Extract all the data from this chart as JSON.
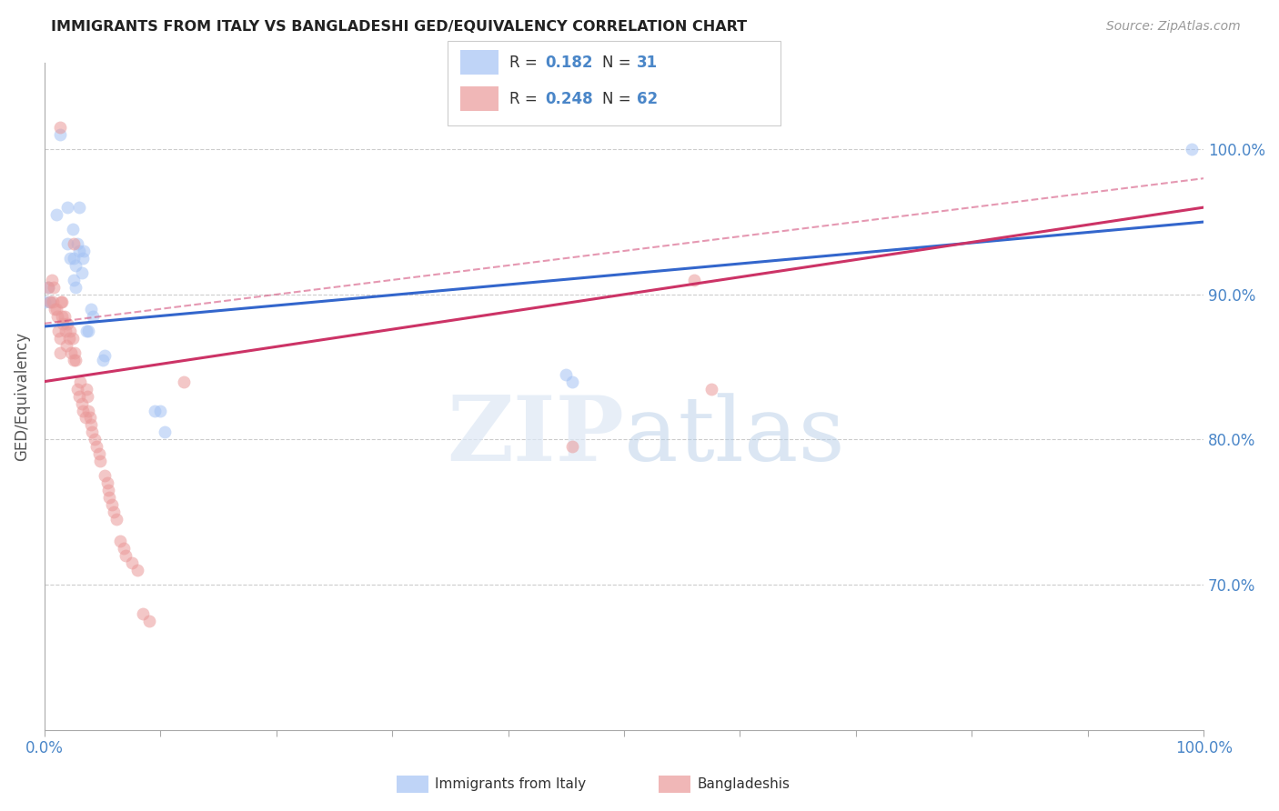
{
  "title": "IMMIGRANTS FROM ITALY VS BANGLADESHI GED/EQUIVALENCY CORRELATION CHART",
  "source": "Source: ZipAtlas.com",
  "ylabel": "GED/Equivalency",
  "legend1_r": "0.182",
  "legend1_n": "31",
  "legend2_r": "0.248",
  "legend2_n": "62",
  "blue_color": "#a4c2f4",
  "pink_color": "#ea9999",
  "line_blue": "#3366cc",
  "line_pink": "#cc3366",
  "axis_label_color": "#4a86c8",
  "ytick_color": "#4a86c8",
  "blue_scatter": [
    [
      0.0,
      0.895
    ],
    [
      0.01,
      0.955
    ],
    [
      0.013,
      1.01
    ],
    [
      0.02,
      0.96
    ],
    [
      0.02,
      0.935
    ],
    [
      0.022,
      0.925
    ],
    [
      0.024,
      0.945
    ],
    [
      0.025,
      0.925
    ],
    [
      0.025,
      0.91
    ],
    [
      0.027,
      0.92
    ],
    [
      0.027,
      0.905
    ],
    [
      0.028,
      0.935
    ],
    [
      0.03,
      0.96
    ],
    [
      0.03,
      0.93
    ],
    [
      0.032,
      0.915
    ],
    [
      0.033,
      0.925
    ],
    [
      0.034,
      0.93
    ],
    [
      0.036,
      0.875
    ],
    [
      0.038,
      0.875
    ],
    [
      0.04,
      0.89
    ],
    [
      0.042,
      0.885
    ],
    [
      0.05,
      0.855
    ],
    [
      0.052,
      0.858
    ],
    [
      0.095,
      0.82
    ],
    [
      0.1,
      0.82
    ],
    [
      0.104,
      0.805
    ],
    [
      0.45,
      0.845
    ],
    [
      0.455,
      0.84
    ],
    [
      0.99,
      1.0
    ],
    [
      0.003,
      0.905
    ],
    [
      0.005,
      0.895
    ]
  ],
  "pink_scatter": [
    [
      0.003,
      0.905
    ],
    [
      0.005,
      0.895
    ],
    [
      0.006,
      0.91
    ],
    [
      0.007,
      0.895
    ],
    [
      0.008,
      0.905
    ],
    [
      0.009,
      0.89
    ],
    [
      0.01,
      0.89
    ],
    [
      0.011,
      0.885
    ],
    [
      0.012,
      0.875
    ],
    [
      0.013,
      0.87
    ],
    [
      0.013,
      0.86
    ],
    [
      0.014,
      0.895
    ],
    [
      0.015,
      0.885
    ],
    [
      0.015,
      0.895
    ],
    [
      0.016,
      0.88
    ],
    [
      0.017,
      0.885
    ],
    [
      0.018,
      0.875
    ],
    [
      0.019,
      0.865
    ],
    [
      0.02,
      0.88
    ],
    [
      0.021,
      0.87
    ],
    [
      0.022,
      0.875
    ],
    [
      0.023,
      0.86
    ],
    [
      0.024,
      0.87
    ],
    [
      0.025,
      0.855
    ],
    [
      0.026,
      0.86
    ],
    [
      0.027,
      0.855
    ],
    [
      0.028,
      0.835
    ],
    [
      0.03,
      0.83
    ],
    [
      0.031,
      0.84
    ],
    [
      0.032,
      0.825
    ],
    [
      0.033,
      0.82
    ],
    [
      0.035,
      0.815
    ],
    [
      0.036,
      0.835
    ],
    [
      0.037,
      0.83
    ],
    [
      0.038,
      0.82
    ],
    [
      0.039,
      0.815
    ],
    [
      0.04,
      0.81
    ],
    [
      0.041,
      0.805
    ],
    [
      0.043,
      0.8
    ],
    [
      0.045,
      0.795
    ],
    [
      0.047,
      0.79
    ],
    [
      0.048,
      0.785
    ],
    [
      0.052,
      0.775
    ],
    [
      0.054,
      0.77
    ],
    [
      0.055,
      0.765
    ],
    [
      0.056,
      0.76
    ],
    [
      0.058,
      0.755
    ],
    [
      0.06,
      0.75
    ],
    [
      0.062,
      0.745
    ],
    [
      0.065,
      0.73
    ],
    [
      0.068,
      0.725
    ],
    [
      0.07,
      0.72
    ],
    [
      0.075,
      0.715
    ],
    [
      0.08,
      0.71
    ],
    [
      0.085,
      0.68
    ],
    [
      0.09,
      0.675
    ],
    [
      0.013,
      1.015
    ],
    [
      0.025,
      0.935
    ],
    [
      0.12,
      0.84
    ],
    [
      0.455,
      0.795
    ],
    [
      0.56,
      0.91
    ],
    [
      0.575,
      0.835
    ]
  ],
  "xlim": [
    0.0,
    1.0
  ],
  "ylim": [
    0.6,
    1.06
  ],
  "blue_line": [
    0.878,
    0.95
  ],
  "pink_line": [
    0.84,
    0.96
  ],
  "pink_dashed": [
    0.88,
    0.98
  ],
  "xtick_positions": [
    0.0,
    0.1,
    0.2,
    0.3,
    0.4,
    0.5,
    0.6,
    0.7,
    0.8,
    0.9,
    1.0
  ],
  "right_ytick_vals": [
    0.7,
    0.8,
    0.9,
    1.0
  ],
  "right_ytick_labels": [
    "70.0%",
    "80.0%",
    "90.0%",
    "100.0%"
  ],
  "watermark_zip": "ZIP",
  "watermark_atlas": "atlas"
}
